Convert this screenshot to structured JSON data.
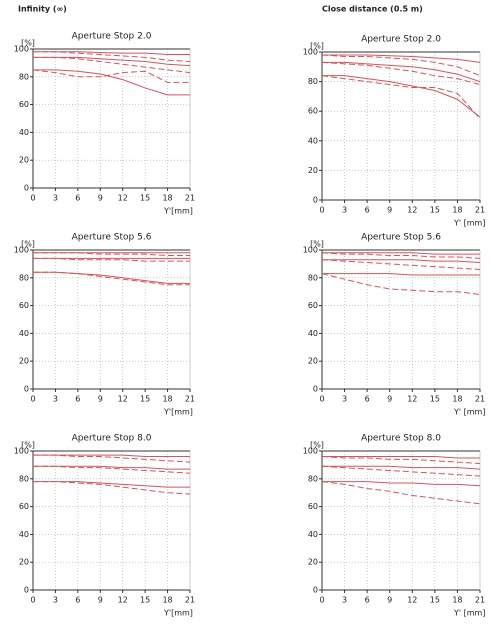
{
  "headers": [
    "Infinity (∞)",
    "Close distance (0.5 m)"
  ],
  "chart_data": [
    {
      "type": "line",
      "title": "Aperture Stop 2.0",
      "ylabel": "[%]",
      "xlabel": "Y'[mm]",
      "x": [
        0,
        3,
        6,
        9,
        12,
        15,
        18,
        21
      ],
      "xlim": [
        0,
        21
      ],
      "xticks": [
        0,
        3,
        6,
        9,
        12,
        15,
        18,
        21
      ],
      "ylim": [
        0,
        100
      ],
      "yticks": [
        0,
        20,
        40,
        60,
        80,
        100
      ],
      "grid": true,
      "series": [
        {
          "color": "#d9535e",
          "dashed": false,
          "values": [
            98,
            98,
            98,
            97.5,
            97,
            97,
            96,
            96
          ]
        },
        {
          "color": "#d9535e",
          "dashed": true,
          "values": [
            98,
            98,
            97,
            96,
            95,
            94,
            92,
            91
          ]
        },
        {
          "color": "#d9535e",
          "dashed": false,
          "values": [
            94,
            94,
            94,
            93,
            92,
            91,
            89,
            88
          ]
        },
        {
          "color": "#d9535e",
          "dashed": true,
          "values": [
            94,
            94,
            93,
            91,
            89,
            87,
            85,
            83
          ]
        },
        {
          "color": "#d9535e",
          "dashed": false,
          "values": [
            85,
            85,
            84,
            82,
            78,
            72,
            67,
            67
          ]
        },
        {
          "color": "#d9535e",
          "dashed": true,
          "values": [
            85,
            83,
            80,
            80,
            83,
            84,
            76,
            76
          ]
        }
      ]
    },
    {
      "type": "line",
      "title": "Aperture Stop 2.0",
      "ylabel": "[%]",
      "xlabel": "Y' [mm]",
      "x": [
        0,
        3,
        6,
        9,
        12,
        15,
        18,
        21
      ],
      "xlim": [
        0,
        21
      ],
      "xticks": [
        0,
        3,
        6,
        9,
        12,
        15,
        18,
        21
      ],
      "ylim": [
        0,
        100
      ],
      "yticks": [
        0,
        20,
        40,
        60,
        80,
        100
      ],
      "grid": true,
      "series": [
        {
          "color": "#d9535e",
          "dashed": false,
          "values": [
            98,
            98,
            98,
            97.5,
            97,
            96,
            95,
            93
          ]
        },
        {
          "color": "#d9535e",
          "dashed": true,
          "values": [
            98,
            97,
            97,
            96,
            95,
            93,
            90,
            84
          ]
        },
        {
          "color": "#d9535e",
          "dashed": false,
          "values": [
            93,
            93,
            92,
            91,
            90,
            88,
            85,
            80
          ]
        },
        {
          "color": "#d9535e",
          "dashed": true,
          "values": [
            93,
            92,
            91,
            89,
            87,
            84,
            82,
            78
          ]
        },
        {
          "color": "#d9535e",
          "dashed": false,
          "values": [
            84,
            84,
            82,
            80,
            77,
            74,
            68,
            56
          ]
        },
        {
          "color": "#d9535e",
          "dashed": true,
          "values": [
            84,
            82,
            80,
            78,
            76,
            76,
            72,
            55
          ]
        }
      ]
    },
    {
      "type": "line",
      "title": "Aperture Stop 5.6",
      "ylabel": "[%]",
      "xlabel": "Y'[mm]",
      "x": [
        0,
        3,
        6,
        9,
        12,
        15,
        18,
        21
      ],
      "xlim": [
        0,
        21
      ],
      "xticks": [
        0,
        3,
        6,
        9,
        12,
        15,
        18,
        21
      ],
      "ylim": [
        0,
        100
      ],
      "yticks": [
        0,
        20,
        40,
        60,
        80,
        100
      ],
      "grid": true,
      "series": [
        {
          "color": "#d9535e",
          "dashed": false,
          "values": [
            98,
            98,
            98,
            98,
            98,
            98,
            98,
            98
          ]
        },
        {
          "color": "#d9535e",
          "dashed": true,
          "values": [
            98,
            98,
            98,
            97,
            97,
            97,
            96,
            96
          ]
        },
        {
          "color": "#d9535e",
          "dashed": false,
          "values": [
            94,
            94,
            94,
            94,
            94,
            94,
            94,
            94
          ]
        },
        {
          "color": "#d9535e",
          "dashed": true,
          "values": [
            94,
            94,
            93,
            93,
            93,
            92,
            92,
            92
          ]
        },
        {
          "color": "#d9535e",
          "dashed": false,
          "values": [
            84,
            84,
            83,
            82,
            80,
            78,
            76,
            76
          ]
        },
        {
          "color": "#d9535e",
          "dashed": true,
          "values": [
            84,
            84,
            83,
            81,
            79,
            77,
            75,
            75
          ]
        }
      ]
    },
    {
      "type": "line",
      "title": "Aperture Stop 5.6",
      "ylabel": "[%]",
      "xlabel": "Y' [mm]",
      "x": [
        0,
        3,
        6,
        9,
        12,
        15,
        18,
        21
      ],
      "xlim": [
        0,
        21
      ],
      "xticks": [
        0,
        3,
        6,
        9,
        12,
        15,
        18,
        21
      ],
      "ylim": [
        0,
        100
      ],
      "yticks": [
        0,
        20,
        40,
        60,
        80,
        100
      ],
      "grid": true,
      "series": [
        {
          "color": "#d9535e",
          "dashed": false,
          "values": [
            98,
            98,
            98,
            98,
            98,
            97,
            97,
            97
          ]
        },
        {
          "color": "#d9535e",
          "dashed": true,
          "values": [
            98,
            97,
            97,
            96,
            96,
            95,
            95,
            94
          ]
        },
        {
          "color": "#d9535e",
          "dashed": false,
          "values": [
            93,
            93,
            93,
            93,
            93,
            92,
            92,
            91
          ]
        },
        {
          "color": "#d9535e",
          "dashed": true,
          "values": [
            93,
            92,
            91,
            90,
            89,
            88,
            87,
            86
          ]
        },
        {
          "color": "#d9535e",
          "dashed": false,
          "values": [
            83,
            83,
            83,
            83,
            82,
            82,
            82,
            82
          ]
        },
        {
          "color": "#d9535e",
          "dashed": true,
          "values": [
            83,
            79,
            75,
            72,
            71,
            70,
            70,
            68
          ]
        }
      ]
    },
    {
      "type": "line",
      "title": "Aperture Stop 8.0",
      "ylabel": "[%]",
      "xlabel": "Y'[mm]",
      "x": [
        0,
        3,
        6,
        9,
        12,
        15,
        18,
        21
      ],
      "xlim": [
        0,
        21
      ],
      "xticks": [
        0,
        3,
        6,
        9,
        12,
        15,
        18,
        21
      ],
      "ylim": [
        0,
        100
      ],
      "yticks": [
        0,
        20,
        40,
        60,
        80,
        100
      ],
      "grid": true,
      "series": [
        {
          "color": "#d9535e",
          "dashed": false,
          "values": [
            97,
            97,
            97,
            97,
            97,
            96,
            96,
            96
          ]
        },
        {
          "color": "#d9535e",
          "dashed": true,
          "values": [
            97,
            97,
            96,
            96,
            95,
            94,
            93,
            92
          ]
        },
        {
          "color": "#d9535e",
          "dashed": false,
          "values": [
            89,
            89,
            89,
            89,
            88,
            88,
            87,
            87
          ]
        },
        {
          "color": "#d9535e",
          "dashed": true,
          "values": [
            89,
            89,
            88,
            88,
            87,
            86,
            85,
            84
          ]
        },
        {
          "color": "#d9535e",
          "dashed": false,
          "values": [
            78,
            78,
            78,
            77,
            76,
            75,
            74,
            74
          ]
        },
        {
          "color": "#d9535e",
          "dashed": true,
          "values": [
            78,
            78,
            77,
            76,
            74,
            72,
            70,
            69
          ]
        }
      ]
    },
    {
      "type": "line",
      "title": "Aperture Stop 8.0",
      "ylabel": "[%]",
      "xlabel": "Y' [mm]",
      "x": [
        0,
        3,
        6,
        9,
        12,
        15,
        18,
        21
      ],
      "xlim": [
        0,
        21
      ],
      "xticks": [
        0,
        3,
        6,
        9,
        12,
        15,
        18,
        21
      ],
      "ylim": [
        0,
        100
      ],
      "yticks": [
        0,
        20,
        40,
        60,
        80,
        100
      ],
      "grid": true,
      "series": [
        {
          "color": "#d9535e",
          "dashed": false,
          "values": [
            96,
            96,
            96,
            96,
            96,
            96,
            95,
            95
          ]
        },
        {
          "color": "#d9535e",
          "dashed": true,
          "values": [
            96,
            95,
            95,
            94,
            94,
            93,
            92,
            91
          ]
        },
        {
          "color": "#d9535e",
          "dashed": false,
          "values": [
            89,
            89,
            89,
            89,
            88,
            88,
            88,
            87
          ]
        },
        {
          "color": "#d9535e",
          "dashed": true,
          "values": [
            89,
            88,
            87,
            86,
            85,
            84,
            83,
            82
          ]
        },
        {
          "color": "#d9535e",
          "dashed": false,
          "values": [
            78,
            78,
            78,
            77,
            77,
            76,
            76,
            75
          ]
        },
        {
          "color": "#d9535e",
          "dashed": true,
          "values": [
            78,
            76,
            73,
            71,
            68,
            66,
            64,
            62
          ]
        }
      ]
    }
  ]
}
